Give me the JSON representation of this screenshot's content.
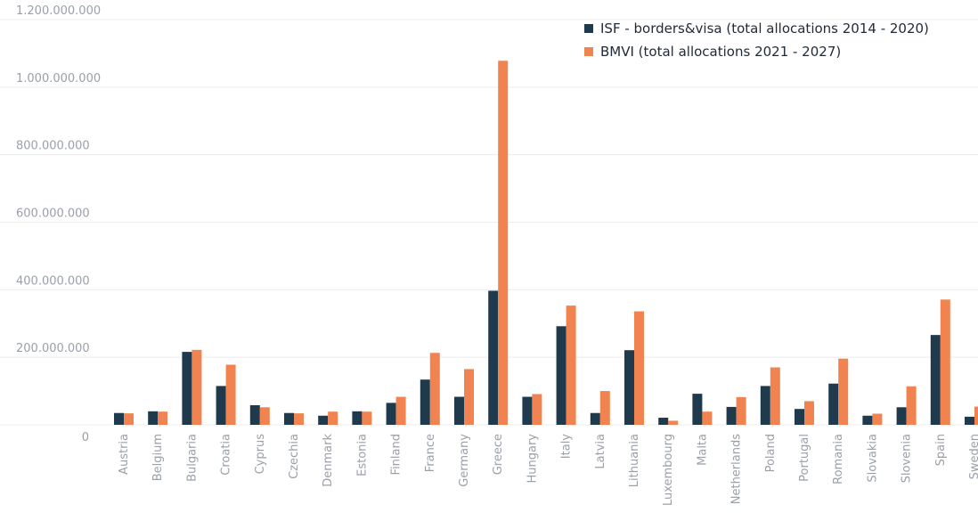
{
  "chart_data": {
    "type": "bar",
    "categories": [
      "Austria",
      "Belgium",
      "Bulgaria",
      "Croatia",
      "Cyprus",
      "Czechia",
      "Denmark",
      "Estonia",
      "Finland",
      "France",
      "Germany",
      "Greece",
      "Hungary",
      "Italy",
      "Latvia",
      "Lithuania",
      "Luxembourg",
      "Malta",
      "Netherlands",
      "Poland",
      "Portugal",
      "Romania",
      "Slovakia",
      "Slovenia",
      "Spain",
      "Sweden"
    ],
    "series": [
      {
        "name": "ISF - borders&visa (total allocations 2014 - 2020)",
        "color": "#1f3a4d",
        "values": [
          35000000,
          40000000,
          216000000,
          115000000,
          58000000,
          35000000,
          27000000,
          40000000,
          65000000,
          134000000,
          83000000,
          397000000,
          83000000,
          292000000,
          35000000,
          221000000,
          21000000,
          92000000,
          53000000,
          115000000,
          47000000,
          122000000,
          27000000,
          52000000,
          266000000,
          24000000
        ]
      },
      {
        "name": "BMVI (total allocations 2021 - 2027)",
        "color": "#f0834f",
        "values": [
          34000000,
          39000000,
          222000000,
          178000000,
          52000000,
          34000000,
          39000000,
          39000000,
          83000000,
          213000000,
          165000000,
          1078000000,
          91000000,
          353000000,
          100000000,
          336000000,
          12000000,
          39000000,
          82000000,
          170000000,
          70000000,
          196000000,
          33000000,
          114000000,
          371000000,
          54000000
        ]
      }
    ],
    "ylim": [
      0,
      1200000000
    ],
    "yticks": [
      0,
      200000000,
      400000000,
      600000000,
      800000000,
      1000000000,
      1200000000
    ],
    "ytick_labels": [
      "0",
      "200.000.000",
      "400.000.000",
      "600.000.000",
      "800.000.000",
      "1.000.000.000",
      "1.200.000.000"
    ],
    "grid": true,
    "legend_position": "top-right"
  }
}
